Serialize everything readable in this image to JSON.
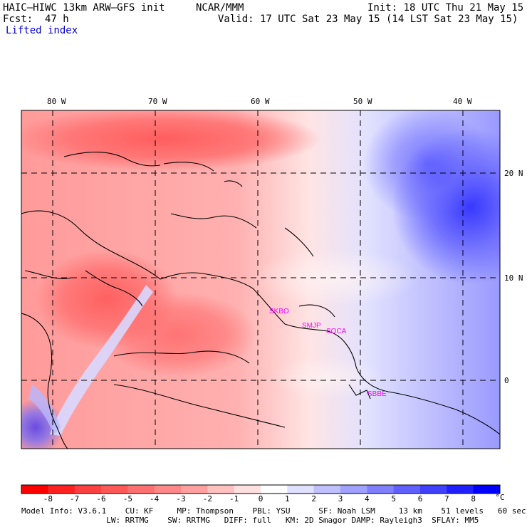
{
  "header": {
    "model": "HAIC–HIWC 13km ARW–GFS init",
    "org": "NCAR/MMM",
    "init": "Init: 18 UTC Thu 21 May 15",
    "fcst": "Fcst:  47 h",
    "valid": "Valid: 17 UTC Sat 23 May 15 (14 LST Sat 23 May 15)",
    "field": "Lifted index"
  },
  "map": {
    "lon_labels": [
      "80 W",
      "70 W",
      "60 W",
      "50 W",
      "40 W"
    ],
    "lat_labels": [
      "20 N",
      "10 N",
      "0"
    ],
    "stations": [
      "SKBO",
      "SMJP",
      "SOCA",
      "SBBE"
    ]
  },
  "colorbar": {
    "labels": [
      "-8",
      "-7",
      "-6",
      "-5",
      "-4",
      "-3",
      "-2",
      "-1",
      "0",
      "1",
      "2",
      "3",
      "4",
      "5",
      "6",
      "7",
      "8"
    ],
    "unit": "°C",
    "colors": [
      "#ff0000",
      "#ff2020",
      "#ff4040",
      "#ff5858",
      "#ff7070",
      "#ff8888",
      "#ffa0a0",
      "#ffc0c0",
      "#ffe0e0",
      "#ffffff",
      "#e0e0ff",
      "#c0c0ff",
      "#a0a0ff",
      "#8080ff",
      "#6060ff",
      "#4040ff",
      "#2020ff",
      "#0000ff"
    ]
  },
  "footer": {
    "line1": "Model Info: V3.6.1    CU: KF     MP: Thompson    PBL: YSU      SF: Noah LSM     13 km    51 levels   60 sec",
    "line2": "                  LW: RRTMG    SW: RRTMG   DIFF: full   KM: 2D Smagor DAMP: Rayleigh3  SFLAY: MM5"
  }
}
